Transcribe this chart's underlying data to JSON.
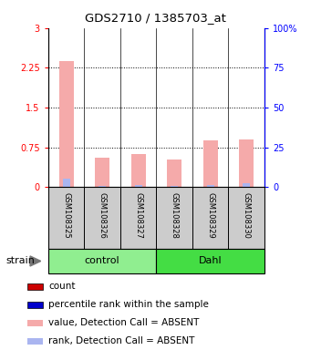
{
  "title": "GDS2710 / 1385703_at",
  "samples": [
    "GSM108325",
    "GSM108326",
    "GSM108327",
    "GSM108328",
    "GSM108329",
    "GSM108330"
  ],
  "group_labels": [
    "control",
    "Dahl"
  ],
  "group_colors": [
    "#90ee90",
    "#44dd44"
  ],
  "bar_values": [
    2.38,
    0.55,
    0.62,
    0.52,
    0.88,
    0.9
  ],
  "rank_values": [
    0.17,
    0.03,
    0.04,
    0.03,
    0.05,
    0.07
  ],
  "ylim_left": [
    0,
    3
  ],
  "ylim_right": [
    0,
    100
  ],
  "yticks_left": [
    0,
    0.75,
    1.5,
    2.25,
    3
  ],
  "yticks_right": [
    0,
    25,
    50,
    75,
    100
  ],
  "ytick_labels_left": [
    "0",
    "0.75",
    "1.5",
    "2.25",
    "3"
  ],
  "ytick_labels_right": [
    "0",
    "25",
    "50",
    "75",
    "100%"
  ],
  "hlines": [
    0.75,
    1.5,
    2.25
  ],
  "bar_color": "#f5aaaa",
  "rank_color": "#aab5f0",
  "bar_width": 0.4,
  "rank_bar_width": 0.2,
  "legend_items": [
    {
      "color": "#cc0000",
      "label": "count"
    },
    {
      "color": "#0000cc",
      "label": "percentile rank within the sample"
    },
    {
      "color": "#f5aaaa",
      "label": "value, Detection Call = ABSENT"
    },
    {
      "color": "#aab5f0",
      "label": "rank, Detection Call = ABSENT"
    }
  ],
  "strain_label": "strain",
  "sample_box_color": "#cccccc",
  "fig_width": 3.41,
  "fig_height": 3.84,
  "dpi": 100
}
